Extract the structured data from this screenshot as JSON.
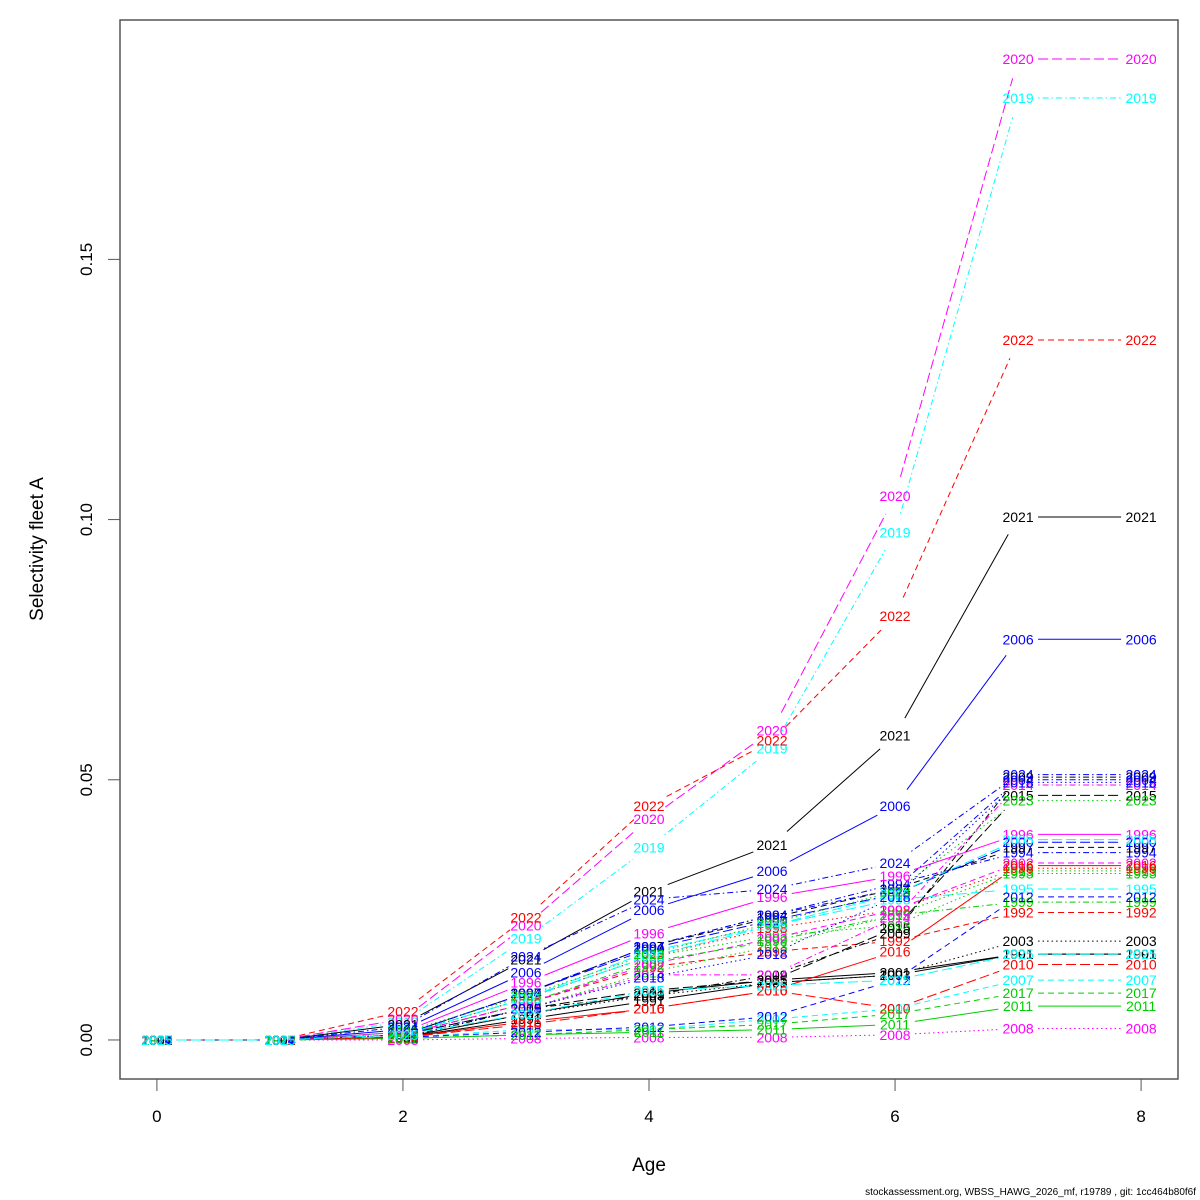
{
  "chart_data": {
    "type": "line",
    "title": "",
    "xlabel": "Age",
    "ylabel": "Selectivity fleet A",
    "xlim": [
      -0.3,
      8.3
    ],
    "ylim": [
      -0.0075,
      0.196
    ],
    "x_ticks": [
      0,
      2,
      4,
      6,
      8
    ],
    "x_tick_labels": [
      "0",
      "2",
      "4",
      "6",
      "8"
    ],
    "y_ticks": [
      0.0,
      0.05,
      0.1,
      0.15
    ],
    "y_tick_labels": [
      "0.00",
      "0.05",
      "0.10",
      "0.15"
    ],
    "grid": false,
    "legend": "none (point labels show year)",
    "x": [
      0,
      1,
      2,
      3,
      4,
      5,
      6,
      7,
      8
    ],
    "series": [
      {
        "name": "1991",
        "color": "#000000",
        "dash": "solid",
        "values": [
          0,
          0,
          0.0005,
          0.004,
          0.0075,
          0.011,
          0.0125,
          0.0165,
          0.0165
        ]
      },
      {
        "name": "1992",
        "color": "#FF0000",
        "dash": "dashed",
        "values": [
          0,
          0,
          0.001,
          0.007,
          0.014,
          0.017,
          0.019,
          0.0245,
          0.0245
        ]
      },
      {
        "name": "1993",
        "color": "#00CD00",
        "dash": "dotted",
        "values": [
          0,
          0,
          0.001,
          0.008,
          0.016,
          0.02,
          0.022,
          0.032,
          0.032
        ]
      },
      {
        "name": "1994",
        "color": "#0000FF",
        "dash": "dotdash",
        "values": [
          0,
          0,
          0.001,
          0.009,
          0.018,
          0.024,
          0.03,
          0.036,
          0.036
        ]
      },
      {
        "name": "1995",
        "color": "#00FFFF",
        "dash": "longdash",
        "values": [
          0,
          0,
          0.001,
          0.008,
          0.017,
          0.022,
          0.027,
          0.029,
          0.029
        ]
      },
      {
        "name": "1996",
        "color": "#FF00FF",
        "dash": "solid",
        "values": [
          0,
          0,
          0.0015,
          0.011,
          0.0205,
          0.0275,
          0.0315,
          0.0395,
          0.0395
        ]
      },
      {
        "name": "1997",
        "color": "#000000",
        "dash": "dashed",
        "values": [
          0,
          0,
          0.001,
          0.009,
          0.018,
          0.0235,
          0.029,
          0.037,
          0.037
        ]
      },
      {
        "name": "1998",
        "color": "#FF0000",
        "dash": "dotted",
        "values": [
          0,
          0,
          0.001,
          0.008,
          0.016,
          0.0215,
          0.025,
          0.033,
          0.033
        ]
      },
      {
        "name": "1999",
        "color": "#00CD00",
        "dash": "dotdash",
        "values": [
          0,
          0,
          0.001,
          0.007,
          0.015,
          0.019,
          0.024,
          0.0265,
          0.0265
        ]
      },
      {
        "name": "2000",
        "color": "#0000FF",
        "dash": "longdash",
        "values": [
          0,
          0,
          0.001,
          0.009,
          0.0175,
          0.023,
          0.028,
          0.038,
          0.038
        ]
      },
      {
        "name": "2001",
        "color": "#000000",
        "dash": "solid",
        "values": [
          0,
          0,
          0.0005,
          0.005,
          0.009,
          0.0115,
          0.013,
          0.0165,
          0.0165
        ]
      },
      {
        "name": "2002",
        "color": "#FF00FF",
        "dash": "dashed",
        "values": [
          0,
          0,
          0.001,
          0.007,
          0.0145,
          0.0195,
          0.025,
          0.034,
          0.034
        ]
      },
      {
        "name": "2003",
        "color": "#000000",
        "dash": "dotted",
        "values": [
          0,
          0,
          0.0005,
          0.005,
          0.0085,
          0.011,
          0.0125,
          0.019,
          0.019
        ]
      },
      {
        "name": "2004",
        "color": "#0000FF",
        "dash": "dotdash",
        "values": [
          0,
          0,
          0.001,
          0.009,
          0.018,
          0.024,
          0.029,
          0.05,
          0.05
        ]
      },
      {
        "name": "2005",
        "color": "#00FFFF",
        "dash": "longdash",
        "values": [
          0,
          0,
          0.001,
          0.008,
          0.016,
          0.022,
          0.028,
          0.0385,
          0.0385
        ]
      },
      {
        "name": "2006",
        "color": "#0000FF",
        "dash": "solid",
        "values": [
          0,
          0,
          0.002,
          0.013,
          0.025,
          0.0325,
          0.045,
          0.077,
          0.077
        ]
      },
      {
        "name": "2007",
        "color": "#00FFFF",
        "dash": "dashed",
        "values": [
          0,
          0,
          0.0005,
          0.002,
          0.002,
          0.004,
          0.006,
          0.0115,
          0.0115
        ]
      },
      {
        "name": "2008",
        "color": "#FF00FF",
        "dash": "dotted",
        "values": [
          0,
          0,
          0,
          0.0003,
          0.0005,
          0.0005,
          0.001,
          0.0022,
          0.0022
        ]
      },
      {
        "name": "2009",
        "color": "#000000",
        "dash": "dotdash",
        "values": [
          0,
          0,
          0.0005,
          0.006,
          0.0085,
          0.0125,
          0.0205,
          0.0505,
          0.0505
        ]
      },
      {
        "name": "2010",
        "color": "#FF0000",
        "dash": "longdash",
        "values": [
          0,
          0,
          0.0005,
          0.003,
          0.006,
          0.0095,
          0.006,
          0.0145,
          0.0145
        ]
      },
      {
        "name": "2011",
        "color": "#00CD00",
        "dash": "solid",
        "values": [
          0,
          0,
          0.0003,
          0.001,
          0.0015,
          0.002,
          0.003,
          0.0065,
          0.0065
        ]
      },
      {
        "name": "2012",
        "color": "#0000FF",
        "dash": "dashed",
        "values": [
          0,
          0,
          0.0005,
          0.0015,
          0.0025,
          0.0045,
          0.0115,
          0.0275,
          0.0275
        ]
      },
      {
        "name": "2013",
        "color": "#00CD00",
        "dash": "dotted",
        "values": [
          0,
          0,
          0.001,
          0.006,
          0.013,
          0.018,
          0.024,
          0.0325,
          0.0325
        ]
      },
      {
        "name": "2014",
        "color": "#FF00FF",
        "dash": "dotdash",
        "values": [
          0,
          0,
          0.001,
          0.006,
          0.0125,
          0.0125,
          0.0235,
          0.049,
          0.049
        ]
      },
      {
        "name": "2015",
        "color": "#000000",
        "dash": "longdash",
        "values": [
          0,
          0,
          0.001,
          0.006,
          0.0095,
          0.0115,
          0.0215,
          0.047,
          0.047
        ]
      },
      {
        "name": "2016",
        "color": "#FF0000",
        "dash": "solid",
        "values": [
          0,
          0,
          0.0005,
          0.0035,
          0.006,
          0.0095,
          0.017,
          0.0335,
          0.0335
        ]
      },
      {
        "name": "2017",
        "color": "#00CD00",
        "dash": "dashed",
        "values": [
          0,
          0,
          0.0003,
          0.001,
          0.002,
          0.003,
          0.005,
          0.009,
          0.009
        ]
      },
      {
        "name": "2018",
        "color": "#0000FF",
        "dash": "dotted",
        "values": [
          0,
          0,
          0.001,
          0.006,
          0.012,
          0.0165,
          0.0275,
          0.0495,
          0.0495
        ]
      },
      {
        "name": "2019",
        "color": "#00FFFF",
        "dash": "dotdash",
        "values": [
          0,
          0,
          0.0035,
          0.0195,
          0.037,
          0.056,
          0.0975,
          0.181,
          0.181
        ]
      },
      {
        "name": "2020",
        "color": "#FF00FF",
        "dash": "longdash",
        "values": [
          0,
          0,
          0.004,
          0.022,
          0.0425,
          0.0595,
          0.1045,
          0.1885,
          0.1885
        ]
      },
      {
        "name": "2021",
        "color": "#000000",
        "dash": "solid",
        "values": [
          0,
          0,
          0.003,
          0.0155,
          0.0285,
          0.0375,
          0.0585,
          0.1005,
          0.1005
        ]
      },
      {
        "name": "2022",
        "color": "#FF0000",
        "dash": "dashed",
        "values": [
          0,
          0,
          0.0055,
          0.0235,
          0.045,
          0.0575,
          0.0815,
          0.1345,
          0.1345
        ]
      },
      {
        "name": "2023",
        "color": "#00CD00",
        "dash": "dotted",
        "values": [
          0,
          0,
          0.0015,
          0.0085,
          0.0165,
          0.0225,
          0.0285,
          0.046,
          0.046
        ]
      },
      {
        "name": "2024",
        "color": "#0000FF",
        "dash": "dotdash",
        "values": [
          0,
          0,
          0.0025,
          0.016,
          0.027,
          0.029,
          0.034,
          0.051,
          0.051
        ]
      },
      {
        "name": "2025",
        "color": "#00FFFF",
        "dash": "longdash",
        "values": [
          0,
          0,
          0.001,
          0.005,
          0.0095,
          0.0105,
          0.0115,
          0.0165,
          0.0165
        ]
      }
    ]
  },
  "footer": "stockassessment.org, WBSS_HAWG_2026_mf, r19789 , git: 1cc464b80f6f"
}
